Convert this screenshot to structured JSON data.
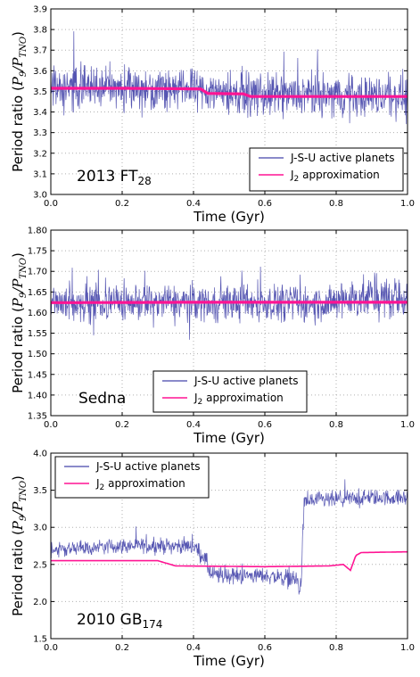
{
  "colors": {
    "active": "#4444aa",
    "j2": "#ff1493",
    "grid": "#b0b0b0"
  },
  "chart_data": [
    {
      "type": "line",
      "object_label": "2013 FT",
      "object_sub": "28",
      "xlabel": "Time (Gyr)",
      "ylabel": "Period ratio (P9/PTNO)",
      "xlim": [
        0.0,
        1.0
      ],
      "ylim": [
        3.0,
        3.9
      ],
      "xticks": [
        "0.0",
        "0.2",
        "0.4",
        "0.6",
        "0.8",
        "1.0"
      ],
      "yticks": [
        "3.0",
        "3.1",
        "3.2",
        "3.3",
        "3.4",
        "3.5",
        "3.6",
        "3.7",
        "3.8",
        "3.9"
      ],
      "grid": true,
      "legend_position": "lower-right",
      "series": [
        {
          "name": "J-S-U active planets",
          "kind": "noisy",
          "x": [
            0.0,
            0.2,
            0.4,
            0.6,
            0.8,
            1.0
          ],
          "center": [
            3.52,
            3.52,
            3.51,
            3.48,
            3.48,
            3.48
          ],
          "half_range": [
            0.15,
            0.15,
            0.15,
            0.15,
            0.15,
            0.15
          ]
        },
        {
          "name": "J2 approximation",
          "kind": "line",
          "x": [
            0.0,
            0.2,
            0.42,
            0.44,
            0.54,
            0.56,
            0.8,
            1.0
          ],
          "y": [
            3.515,
            3.515,
            3.512,
            3.49,
            3.488,
            3.475,
            3.475,
            3.475
          ]
        }
      ],
      "legend": [
        "J-S-U active planets",
        "J2 approximation"
      ]
    },
    {
      "type": "line",
      "object_label": "Sedna",
      "object_sub": "",
      "xlabel": "Time (Gyr)",
      "ylabel": "Period ratio (P9/PTNO)",
      "xlim": [
        0.0,
        1.0
      ],
      "ylim": [
        1.35,
        1.8
      ],
      "xticks": [
        "0.0",
        "0.2",
        "0.4",
        "0.6",
        "0.8",
        "1.0"
      ],
      "yticks": [
        "1.35",
        "1.40",
        "1.45",
        "1.50",
        "1.55",
        "1.60",
        "1.65",
        "1.70",
        "1.75",
        "1.80"
      ],
      "grid": true,
      "legend_position": "lower-center",
      "series": [
        {
          "name": "J-S-U active planets",
          "kind": "noisy",
          "x": [
            0.0,
            0.2,
            0.4,
            0.6,
            0.8,
            0.82,
            1.0
          ],
          "center": [
            1.625,
            1.625,
            1.625,
            1.625,
            1.62,
            1.635,
            1.635
          ],
          "half_range": [
            0.065,
            0.065,
            0.065,
            0.065,
            0.065,
            0.075,
            0.075
          ]
        },
        {
          "name": "J2 approximation",
          "kind": "line",
          "x": [
            0.0,
            0.4,
            0.8,
            1.0
          ],
          "y": [
            1.624,
            1.625,
            1.625,
            1.625
          ]
        }
      ],
      "legend": [
        "J-S-U active planets",
        "J2 approximation"
      ]
    },
    {
      "type": "line",
      "object_label": "2010 GB",
      "object_sub": "174",
      "xlabel": "Time (Gyr)",
      "ylabel": "Period ratio (P9/PTNO)",
      "xlim": [
        0.0,
        1.0
      ],
      "ylim": [
        1.5,
        4.0
      ],
      "xticks": [
        "0.0",
        "0.2",
        "0.4",
        "0.6",
        "0.8",
        "1.0"
      ],
      "yticks": [
        "1.5",
        "2.0",
        "2.5",
        "3.0",
        "3.5",
        "4.0"
      ],
      "grid": true,
      "legend_position": "top-left",
      "series": [
        {
          "name": "J-S-U active planets",
          "kind": "noisy",
          "x": [
            0.0,
            0.2,
            0.4,
            0.43,
            0.45,
            0.47,
            0.6,
            0.69,
            0.7,
            0.71,
            0.72,
            0.9,
            1.0
          ],
          "center": [
            2.7,
            2.75,
            2.75,
            2.6,
            2.35,
            2.35,
            2.35,
            2.3,
            2.1,
            3.3,
            3.35,
            3.4,
            3.4
          ],
          "half_range": [
            0.15,
            0.15,
            0.15,
            0.18,
            0.2,
            0.18,
            0.15,
            0.2,
            0.2,
            0.2,
            0.18,
            0.16,
            0.15
          ]
        },
        {
          "name": "J2 approximation",
          "kind": "line",
          "x": [
            0.0,
            0.3,
            0.35,
            0.6,
            0.78,
            0.82,
            0.84,
            0.855,
            0.87,
            1.0
          ],
          "y": [
            2.55,
            2.55,
            2.48,
            2.47,
            2.48,
            2.5,
            2.42,
            2.62,
            2.66,
            2.67
          ]
        }
      ],
      "legend": [
        "J-S-U active planets",
        "J2 approximation"
      ]
    }
  ],
  "ylabel_parts": {
    "prefix": "Period ratio (",
    "p": "P",
    "p_sub1": "9",
    "slash": "/",
    "p_sub2": "TNO",
    "suffix": ")"
  },
  "legend_labels": {
    "active": "J-S-U active planets",
    "j2_prefix": "J",
    "j2_sub": "2",
    "j2_suffix": " approximation"
  }
}
